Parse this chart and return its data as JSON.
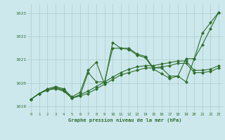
{
  "xlabel": "Graphe pression niveau de la mer (hPa)",
  "bg_color": "#cde8ec",
  "grid_color": "#aacccc",
  "line_color": "#2d6e2d",
  "ylim": [
    1018.75,
    1023.4
  ],
  "xlim": [
    -0.5,
    23.5
  ],
  "yticks": [
    1019,
    1020,
    1021,
    1022,
    1023
  ],
  "xticks": [
    0,
    1,
    2,
    3,
    4,
    5,
    6,
    7,
    8,
    9,
    10,
    11,
    12,
    13,
    14,
    15,
    16,
    17,
    18,
    19,
    20,
    21,
    22,
    23
  ],
  "s1": [
    1019.3,
    1019.55,
    1019.75,
    1019.85,
    1019.75,
    1019.4,
    1019.6,
    1020.55,
    1020.9,
    1019.95,
    1021.75,
    1021.5,
    1021.5,
    1021.25,
    1021.15,
    1020.65,
    1020.65,
    1020.3,
    1020.3,
    1021.05,
    1021.05,
    1022.15,
    1022.6,
    1023.05
  ],
  "s2": [
    1019.3,
    1019.55,
    1019.7,
    1019.8,
    1019.7,
    1019.35,
    1019.45,
    1019.55,
    1019.75,
    1019.95,
    1020.15,
    1020.35,
    1020.45,
    1020.55,
    1020.65,
    1020.65,
    1020.7,
    1020.75,
    1020.85,
    1020.85,
    1020.45,
    1020.45,
    1020.5,
    1020.65
  ],
  "s3": [
    1019.3,
    1019.55,
    1019.7,
    1019.8,
    1019.7,
    1019.35,
    1019.5,
    1019.65,
    1019.85,
    1020.05,
    1020.25,
    1020.45,
    1020.6,
    1020.7,
    1020.75,
    1020.75,
    1020.82,
    1020.88,
    1020.95,
    1020.95,
    1020.55,
    1020.55,
    1020.6,
    1020.75
  ],
  "s4": [
    1019.3,
    1019.55,
    1019.7,
    1019.75,
    1019.65,
    1019.35,
    1019.45,
    1020.45,
    1020.05,
    1020.05,
    1021.5,
    1021.5,
    1021.45,
    1021.2,
    1021.1,
    1020.6,
    1020.4,
    1020.2,
    1020.3,
    1020.05,
    1021.05,
    1021.65,
    1022.35,
    1023.05
  ]
}
